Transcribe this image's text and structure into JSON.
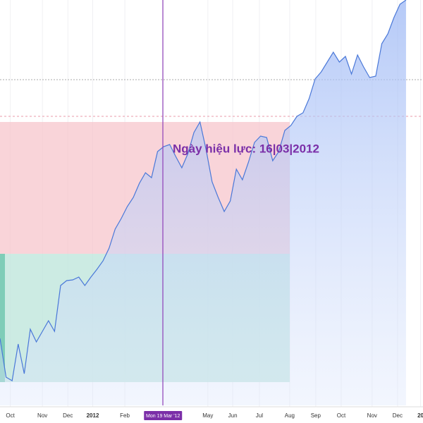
{
  "chart_data": {
    "type": "line",
    "annotation": "Ngày hiệu lực: 16|03|2012",
    "color": "#4a78d8",
    "values": [
      95,
      40,
      35,
      87,
      45,
      108,
      90,
      105,
      120,
      105,
      170,
      177,
      178,
      182,
      170,
      182,
      193,
      205,
      223,
      250,
      265,
      282,
      295,
      315,
      330,
      323,
      360,
      367,
      370,
      353,
      337,
      357,
      387,
      402,
      363,
      317,
      295,
      275,
      290,
      335,
      320,
      345,
      373,
      382,
      380,
      347,
      360,
      390,
      397,
      410,
      415,
      435,
      463,
      473,
      487,
      501,
      487,
      495,
      470,
      497,
      480,
      465,
      467,
      513,
      527,
      550,
      569,
      575
    ],
    "ylim": [
      0,
      575
    ],
    "xlim": [
      0,
      69.8
    ],
    "xticks": [
      {
        "value": 1.7,
        "label": "Oct"
      },
      {
        "value": 7,
        "label": "Nov"
      },
      {
        "value": 11.2,
        "label": "Dec"
      },
      {
        "value": 15.3,
        "label": "2012"
      },
      {
        "value": 20.6,
        "label": "Feb"
      },
      {
        "value": 26.9,
        "label": "Mon 19 Mar '12"
      },
      {
        "value": 34.3,
        "label": "May"
      },
      {
        "value": 38.4,
        "label": "Jun"
      },
      {
        "value": 42.8,
        "label": "Jul"
      },
      {
        "value": 47.8,
        "label": "Aug"
      },
      {
        "value": 52.1,
        "label": "Sep"
      },
      {
        "value": 56.3,
        "label": "Oct"
      },
      {
        "value": 61.4,
        "label": "Nov"
      },
      {
        "value": 65.6,
        "label": "Dec"
      },
      {
        "value": 69.4,
        "label": "20"
      }
    ],
    "grid": true
  }
}
